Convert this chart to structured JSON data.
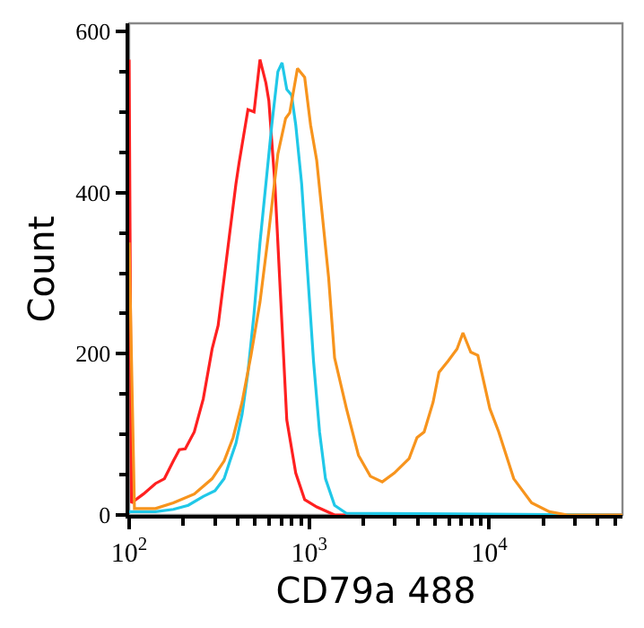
{
  "chart_data": {
    "type": "line",
    "xlabel": "CD79a 488",
    "ylabel": "Count",
    "log": "x",
    "xlim": [
      100,
      55000
    ],
    "xticks": [
      {
        "value": 100,
        "label": "10$^{2}$"
      },
      {
        "value": 1000,
        "label": "10$^{3}$"
      },
      {
        "value": 10000,
        "label": "10$^{4}$"
      }
    ],
    "ylim": [
      0,
      610
    ],
    "yticks": [
      0,
      200,
      400,
      600
    ],
    "grid": false,
    "marker": "none",
    "line_style": "solid",
    "series": [
      {
        "color": "#ff2020",
        "x": [
          100,
          103,
          120,
          140,
          157,
          176,
          190,
          205,
          230,
          258,
          289,
          312,
          337,
          363,
          392,
          408,
          457,
          494,
          533,
          575,
          597,
          645,
          696,
          751,
          842,
          944,
          1101,
          1384,
          55000
        ],
        "values": [
          565,
          15,
          26,
          39,
          45,
          67,
          81,
          82,
          103,
          144,
          206,
          235,
          294,
          352,
          411,
          437,
          503,
          500,
          565,
          536,
          514,
          411,
          264,
          118,
          52,
          19,
          10,
          0,
          0
        ]
      },
      {
        "color": "#20c8e8",
        "x": [
          100,
          103,
          140,
          176,
          213,
          258,
          300,
          337,
          363,
          392,
          424,
          457,
          494,
          533,
          575,
          620,
          670,
          707,
          751,
          798,
          842,
          908,
          980,
          1057,
          1142,
          1232,
          1384,
          1611,
          55000
        ],
        "values": [
          4,
          4,
          4,
          7,
          12,
          23,
          30,
          45,
          67,
          89,
          125,
          177,
          250,
          338,
          411,
          484,
          550,
          561,
          528,
          521,
          484,
          411,
          301,
          191,
          103,
          45,
          12,
          2,
          0
        ]
      },
      {
        "color": "#f7941d",
        "x": [
          100,
          107,
          140,
          176,
          230,
          289,
          337,
          378,
          424,
          475,
          533,
          597,
          670,
          740,
          780,
          861,
          944,
          1018,
          1101,
          1189,
          1283,
          1384,
          1611,
          1878,
          2187,
          2547,
          2969,
          3590,
          3972,
          4350,
          4880,
          5262,
          5907,
          6627,
          7150,
          7900,
          8650,
          10080,
          11300,
          13690,
          17200,
          21600,
          27200,
          55000
        ],
        "values": [
          338,
          8,
          8,
          15,
          26,
          45,
          67,
          96,
          140,
          198,
          264,
          352,
          448,
          492,
          499,
          554,
          543,
          484,
          440,
          367,
          294,
          195,
          132,
          74,
          48,
          41,
          52,
          70,
          96,
          103,
          140,
          177,
          191,
          206,
          226,
          202,
          198,
          132,
          103,
          45,
          15,
          4,
          0,
          0
        ]
      }
    ]
  }
}
